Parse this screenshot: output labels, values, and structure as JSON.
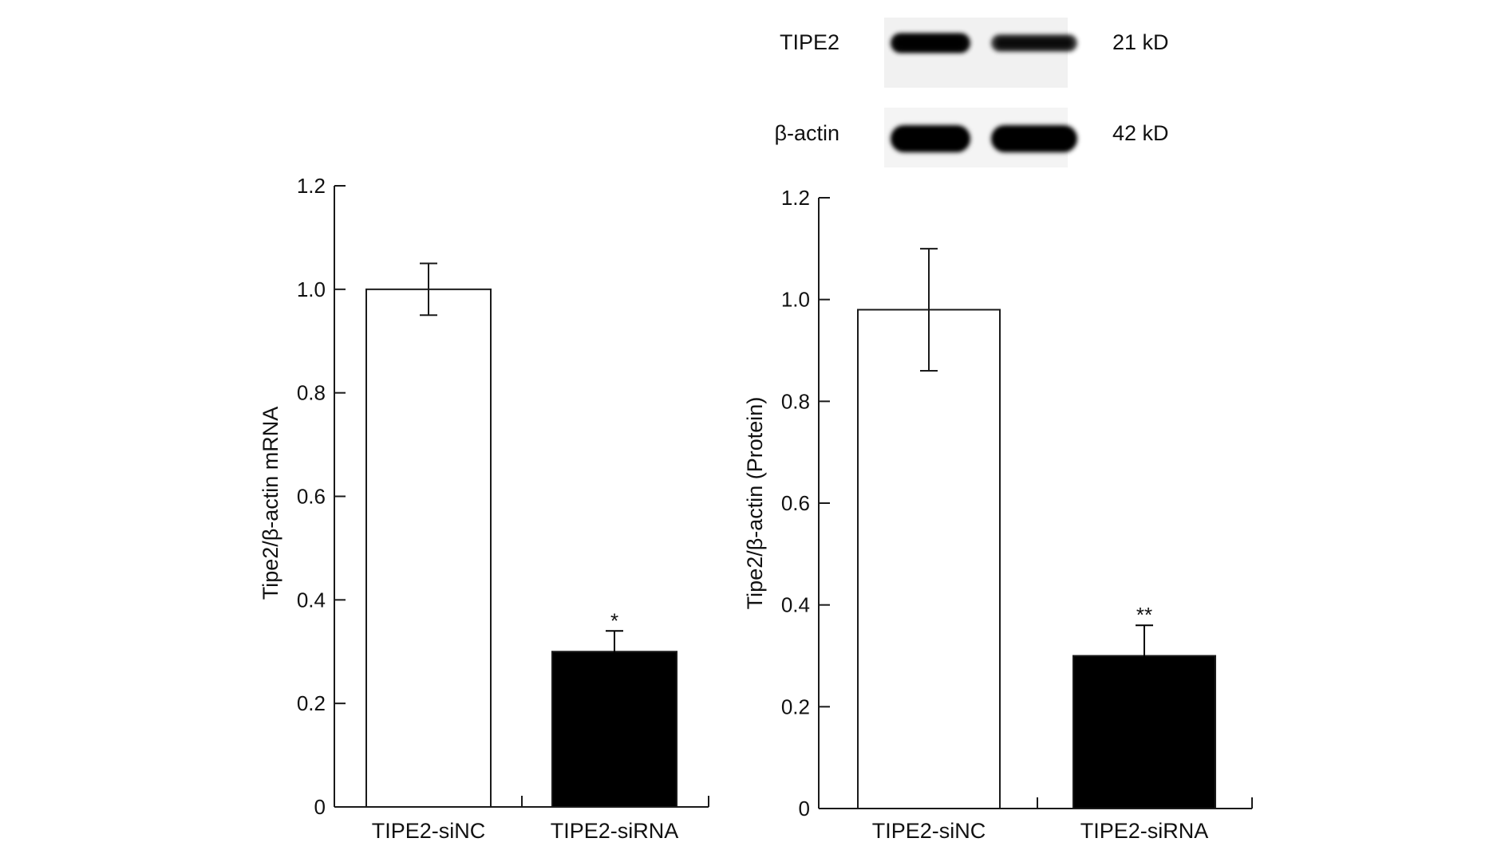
{
  "blot": {
    "rows": [
      {
        "label": "TIPE2",
        "size": "21 kD",
        "intensities": [
          0.92,
          0.62
        ]
      },
      {
        "label": "β-actin",
        "size": "42 kD",
        "intensities": [
          1.0,
          1.0
        ]
      }
    ]
  },
  "chart_data": [
    {
      "type": "bar",
      "title": "",
      "xlabel": "",
      "ylabel": "Tipe2/β-actin mRNA",
      "categories": [
        "TIPE2-siNC",
        "TIPE2-siRNA"
      ],
      "values": [
        1.0,
        0.3
      ],
      "errors": [
        0.05,
        0.04
      ],
      "fills": [
        "#ffffff",
        "#000000"
      ],
      "significance": [
        "",
        "*"
      ],
      "ylim": [
        0,
        1.2
      ],
      "yticks": [
        0,
        0.2,
        0.4,
        0.6,
        0.8,
        1.0,
        1.2
      ],
      "ytick_labels": [
        "0",
        "0.2",
        "0.4",
        "0.6",
        "0.8",
        "1.0",
        "1.2"
      ],
      "grid": false
    },
    {
      "type": "bar",
      "title": "",
      "xlabel": "",
      "ylabel": "Tipe2/β-actin (Protein)",
      "categories": [
        "TIPE2-siNC",
        "TIPE2-siRNA"
      ],
      "values": [
        0.98,
        0.3
      ],
      "errors": [
        0.12,
        0.06
      ],
      "fills": [
        "#ffffff",
        "#000000"
      ],
      "significance": [
        "",
        "**"
      ],
      "ylim": [
        0,
        1.2
      ],
      "yticks": [
        0,
        0.2,
        0.4,
        0.6,
        0.8,
        1.0,
        1.2
      ],
      "ytick_labels": [
        "0",
        "0.2",
        "0.4",
        "0.6",
        "0.8",
        "1.0",
        "1.2"
      ],
      "grid": false
    }
  ]
}
